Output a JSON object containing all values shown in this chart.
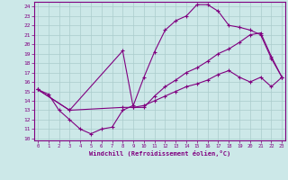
{
  "xlabel": "Windchill (Refroidissement éolien,°C)",
  "xlim": [
    0,
    23
  ],
  "ylim": [
    10,
    24
  ],
  "xticks": [
    0,
    1,
    2,
    3,
    4,
    5,
    6,
    7,
    8,
    9,
    10,
    11,
    12,
    13,
    14,
    15,
    16,
    17,
    18,
    19,
    20,
    21,
    22,
    23
  ],
  "yticks": [
    10,
    11,
    12,
    13,
    14,
    15,
    16,
    17,
    18,
    19,
    20,
    21,
    22,
    23,
    24
  ],
  "bg_color": "#cce8e8",
  "line_color": "#800080",
  "grid_color": "#aacccc",
  "curve1_x": [
    0,
    1,
    2,
    3,
    4,
    5,
    6,
    7,
    8,
    9,
    10,
    11,
    12,
    13,
    14,
    15,
    16,
    17,
    18,
    19,
    20,
    21,
    22,
    23
  ],
  "curve1_y": [
    15.2,
    14.7,
    13.0,
    12.0,
    11.0,
    10.5,
    11.0,
    11.2,
    13.0,
    13.5,
    16.5,
    19.2,
    21.5,
    22.5,
    23.0,
    24.2,
    24.2,
    23.5,
    22.0,
    21.8,
    21.5,
    21.0,
    18.5,
    16.5
  ],
  "curve2_x": [
    0,
    3,
    8,
    9,
    10,
    11,
    12,
    13,
    14,
    15,
    16,
    17,
    18,
    19,
    20,
    21,
    22,
    23
  ],
  "curve2_y": [
    15.2,
    13.0,
    19.3,
    13.3,
    13.3,
    14.5,
    15.5,
    16.2,
    17.0,
    17.5,
    18.2,
    19.0,
    19.5,
    20.2,
    21.0,
    21.2,
    18.7,
    16.5
  ],
  "curve3_x": [
    0,
    3,
    8,
    9,
    10,
    11,
    12,
    13,
    14,
    15,
    16,
    17,
    18,
    19,
    20,
    21,
    22,
    23
  ],
  "curve3_y": [
    15.2,
    13.0,
    13.3,
    13.3,
    13.5,
    14.0,
    14.5,
    15.0,
    15.5,
    15.8,
    16.2,
    16.8,
    17.2,
    16.5,
    16.0,
    16.5,
    15.5,
    16.5
  ]
}
